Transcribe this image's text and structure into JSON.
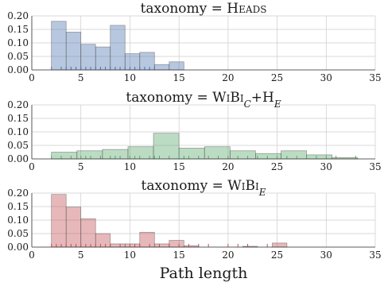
{
  "chart_data": [
    {
      "type": "bar",
      "title_parts": [
        {
          "text": "taxonomy = H"
        },
        {
          "text": "EADS",
          "style": "smallcaps"
        }
      ],
      "bin_width": 1.5,
      "bin_start": 2,
      "values": [
        0.18,
        0.14,
        0.095,
        0.085,
        0.165,
        0.06,
        0.065,
        0.02,
        0.03
      ],
      "rug": [
        2,
        3,
        3.5,
        4,
        4.5,
        5,
        5.5,
        6,
        6.5,
        7,
        7.5,
        8,
        8.5,
        9,
        9.5,
        10,
        10.5,
        11,
        11.5,
        12,
        12.5
      ],
      "color": "#4c72b0",
      "xlim": [
        0,
        35
      ],
      "ylim": [
        0,
        0.2
      ],
      "xticks": [
        "0",
        "5",
        "10",
        "15",
        "20",
        "25",
        "30",
        "35"
      ],
      "yticks": [
        "0.00",
        "0.05",
        "0.10",
        "0.15",
        "0.20"
      ]
    },
    {
      "type": "bar",
      "title_parts": [
        {
          "text": "taxonomy = W"
        },
        {
          "text": "I",
          "style": "smallcaps"
        },
        {
          "text": "B"
        },
        {
          "text": "I",
          "style": "smallcaps"
        },
        {
          "text": "C",
          "style": "sub"
        },
        {
          "text": "+H"
        },
        {
          "text": "E",
          "style": "sub"
        }
      ],
      "bin_width": 2.6,
      "bin_start": 2,
      "values": [
        0.025,
        0.03,
        0.035,
        0.045,
        0.095,
        0.04,
        0.045,
        0.03,
        0.02,
        0.03,
        0.015,
        0.005
      ],
      "rug": [
        2,
        3,
        4,
        5,
        5.5,
        6,
        7,
        8,
        8.5,
        9,
        10,
        10.5,
        11,
        12,
        12.5,
        13,
        14,
        15,
        15.5,
        16,
        17,
        18,
        19,
        20,
        21,
        22,
        23,
        24,
        25,
        26,
        27,
        28,
        29,
        30,
        31,
        33
      ],
      "color": "#55a868",
      "xlim": [
        0,
        35
      ],
      "ylim": [
        0,
        0.2
      ],
      "xticks": [
        "0",
        "5",
        "10",
        "15",
        "20",
        "25",
        "30",
        "35"
      ],
      "yticks": [
        "0.00",
        "0.05",
        "0.10",
        "0.15",
        "0.20"
      ]
    },
    {
      "type": "bar",
      "title_parts": [
        {
          "text": "taxonomy = W"
        },
        {
          "text": "I",
          "style": "smallcaps"
        },
        {
          "text": "B"
        },
        {
          "text": "I",
          "style": "smallcaps"
        },
        {
          "text": "E",
          "style": "sub"
        }
      ],
      "bin_width": 1.5,
      "bin_start": 2,
      "values": [
        0.195,
        0.148,
        0.105,
        0.05,
        0.012,
        0.012,
        0.055,
        0.012,
        0.025,
        0.005,
        0,
        0,
        0,
        0.003,
        0,
        0.015
      ],
      "rug": [
        2,
        2.5,
        3,
        3.5,
        4,
        4.5,
        5,
        5.5,
        6,
        6.5,
        7,
        7.5,
        8,
        9,
        10,
        10.5,
        11,
        12,
        13,
        14,
        15,
        16,
        17,
        18,
        20,
        21,
        22,
        24
      ],
      "color": "#c44e52",
      "xlim": [
        0,
        35
      ],
      "ylim": [
        0,
        0.2
      ],
      "xticks": [
        "0",
        "5",
        "10",
        "15",
        "20",
        "25",
        "30",
        "35"
      ],
      "yticks": [
        "0.00",
        "0.05",
        "0.10",
        "0.15",
        "0.20"
      ]
    }
  ],
  "xlabel": "Path length"
}
